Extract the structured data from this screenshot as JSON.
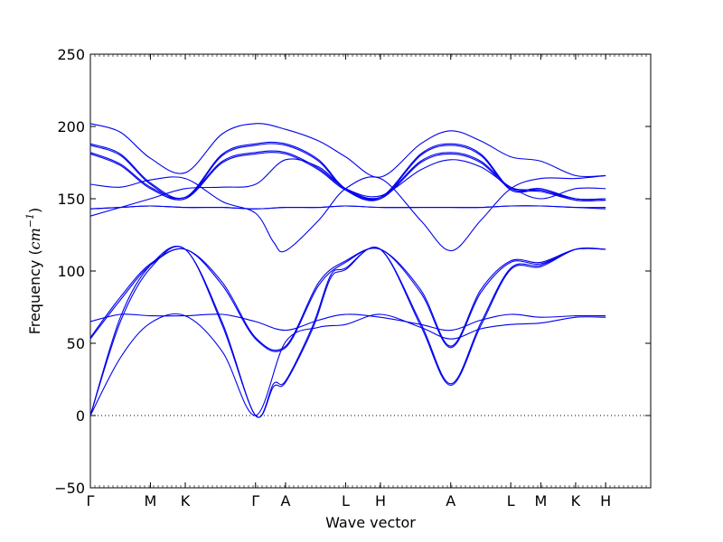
{
  "chart_data": {
    "type": "line",
    "title": "",
    "xlabel": "Wave vector",
    "ylabel": {
      "prefix": "Frequency (",
      "unit_base": "cm",
      "unit_exp": "−1",
      "suffix": ")"
    },
    "ylim": [
      -50,
      250
    ],
    "yticks": [
      -50,
      0,
      50,
      100,
      150,
      200,
      250
    ],
    "xlim": [
      0,
      9.33
    ],
    "high_symmetry_points": [
      {
        "label": "Γ",
        "x": 0.0
      },
      {
        "label": "M",
        "x": 1.0
      },
      {
        "label": "K",
        "x": 1.58
      },
      {
        "label": "Γ",
        "x": 2.75
      },
      {
        "label": "A",
        "x": 3.25
      },
      {
        "label": "L",
        "x": 4.25
      },
      {
        "label": "H",
        "x": 4.83
      },
      {
        "label": "A",
        "x": 6.0
      },
      {
        "label": "L",
        "x": 7.0
      },
      {
        "label": "M",
        "x": 7.5
      },
      {
        "label": "K",
        "x": 8.08
      },
      {
        "label": "H",
        "x": 8.58
      }
    ],
    "zero_line": {
      "y": 0,
      "style": "dotted"
    },
    "line_color": "#0000ee",
    "series": [
      {
        "values": [
          [
            0,
            0
          ],
          [
            0.5,
            40
          ],
          [
            1.0,
            64
          ],
          [
            1.58,
            69
          ],
          [
            2.2,
            44
          ],
          [
            2.75,
            0
          ],
          [
            3.25,
            51
          ],
          [
            3.8,
            61
          ],
          [
            4.25,
            63
          ],
          [
            4.83,
            70
          ],
          [
            5.5,
            61
          ],
          [
            6.0,
            53
          ],
          [
            6.5,
            60
          ],
          [
            7.0,
            63
          ],
          [
            7.5,
            64
          ],
          [
            8.08,
            68
          ],
          [
            8.58,
            68
          ]
        ]
      },
      {
        "values": [
          [
            0,
            0
          ],
          [
            0.5,
            65
          ],
          [
            1.0,
            102
          ],
          [
            1.58,
            115
          ],
          [
            2.2,
            62
          ],
          [
            2.75,
            0
          ],
          [
            3.05,
            20
          ],
          [
            3.25,
            23
          ],
          [
            3.7,
            60
          ],
          [
            4.0,
            95
          ],
          [
            4.25,
            101
          ],
          [
            4.83,
            115
          ],
          [
            5.5,
            62
          ],
          [
            6.0,
            21
          ],
          [
            6.5,
            62
          ],
          [
            7.0,
            101
          ],
          [
            7.5,
            103
          ],
          [
            8.08,
            115
          ],
          [
            8.58,
            115
          ]
        ]
      },
      {
        "values": [
          [
            0,
            0
          ],
          [
            0.5,
            68
          ],
          [
            1.0,
            104
          ],
          [
            1.58,
            115
          ],
          [
            2.2,
            64
          ],
          [
            2.75,
            0
          ],
          [
            3.05,
            22
          ],
          [
            3.25,
            24
          ],
          [
            3.7,
            62
          ],
          [
            4.0,
            97
          ],
          [
            4.25,
            102
          ],
          [
            4.83,
            115
          ],
          [
            5.5,
            64
          ],
          [
            6.0,
            22
          ],
          [
            6.5,
            64
          ],
          [
            7.0,
            102
          ],
          [
            7.5,
            104
          ],
          [
            8.08,
            115
          ],
          [
            8.58,
            115
          ]
        ]
      },
      {
        "values": [
          [
            0,
            53
          ],
          [
            0.5,
            80
          ],
          [
            1.0,
            104
          ],
          [
            1.58,
            115
          ],
          [
            2.2,
            90
          ],
          [
            2.75,
            53
          ],
          [
            3.25,
            47
          ],
          [
            3.8,
            90
          ],
          [
            4.25,
            106
          ],
          [
            4.83,
            115
          ],
          [
            5.5,
            85
          ],
          [
            6.0,
            47
          ],
          [
            6.5,
            85
          ],
          [
            7.0,
            106
          ],
          [
            7.5,
            105
          ],
          [
            8.08,
            115
          ],
          [
            8.58,
            115
          ]
        ]
      },
      {
        "values": [
          [
            0,
            54
          ],
          [
            0.5,
            82
          ],
          [
            1.0,
            105
          ],
          [
            1.58,
            115
          ],
          [
            2.2,
            92
          ],
          [
            2.75,
            54
          ],
          [
            3.25,
            48
          ],
          [
            3.8,
            92
          ],
          [
            4.25,
            107
          ],
          [
            4.83,
            115
          ],
          [
            5.5,
            87
          ],
          [
            6.0,
            48
          ],
          [
            6.5,
            87
          ],
          [
            7.0,
            107
          ],
          [
            7.5,
            106
          ],
          [
            8.08,
            115
          ],
          [
            8.58,
            115
          ]
        ]
      },
      {
        "values": [
          [
            0,
            65
          ],
          [
            0.5,
            70
          ],
          [
            1.0,
            69
          ],
          [
            1.58,
            69
          ],
          [
            2.2,
            70
          ],
          [
            2.75,
            65
          ],
          [
            3.25,
            59
          ],
          [
            3.8,
            66
          ],
          [
            4.25,
            70
          ],
          [
            4.83,
            68
          ],
          [
            5.5,
            63
          ],
          [
            6.0,
            59
          ],
          [
            6.5,
            66
          ],
          [
            7.0,
            70
          ],
          [
            7.5,
            68
          ],
          [
            8.08,
            69
          ],
          [
            8.58,
            69
          ]
        ]
      },
      {
        "values": [
          [
            0,
            143
          ],
          [
            0.5,
            144
          ],
          [
            1.0,
            145
          ],
          [
            1.58,
            144
          ],
          [
            2.2,
            144
          ],
          [
            2.75,
            143
          ],
          [
            3.25,
            144
          ],
          [
            3.8,
            144
          ],
          [
            4.25,
            145
          ],
          [
            4.83,
            144
          ],
          [
            5.5,
            144
          ],
          [
            6.0,
            144
          ],
          [
            6.5,
            144
          ],
          [
            7.0,
            145
          ],
          [
            7.5,
            145
          ],
          [
            8.08,
            144
          ],
          [
            8.58,
            143
          ]
        ]
      },
      {
        "values": [
          [
            0,
            143
          ],
          [
            0.5,
            144
          ],
          [
            1.0,
            145
          ],
          [
            1.58,
            144
          ],
          [
            2.2,
            144
          ],
          [
            2.75,
            143
          ],
          [
            3.25,
            144
          ],
          [
            3.8,
            144
          ],
          [
            4.25,
            145
          ],
          [
            4.83,
            144
          ],
          [
            5.5,
            144
          ],
          [
            6.0,
            144
          ],
          [
            6.5,
            144
          ],
          [
            7.0,
            145
          ],
          [
            7.5,
            145
          ],
          [
            8.08,
            144
          ],
          [
            8.58,
            144
          ]
        ]
      },
      {
        "values": [
          [
            0,
            138
          ],
          [
            0.5,
            144
          ],
          [
            1.0,
            150
          ],
          [
            1.58,
            157
          ],
          [
            2.2,
            158
          ],
          [
            2.75,
            160
          ],
          [
            3.25,
            177
          ],
          [
            3.8,
            172
          ],
          [
            4.25,
            157
          ],
          [
            4.83,
            152
          ],
          [
            5.5,
            170
          ],
          [
            6.0,
            177
          ],
          [
            6.5,
            172
          ],
          [
            7.0,
            158
          ],
          [
            7.5,
            150
          ],
          [
            8.08,
            157
          ],
          [
            8.58,
            157
          ]
        ]
      },
      {
        "values": [
          [
            0,
            160
          ],
          [
            0.5,
            158
          ],
          [
            1.0,
            163
          ],
          [
            1.58,
            164
          ],
          [
            2.2,
            148
          ],
          [
            2.75,
            140
          ],
          [
            3.05,
            120
          ],
          [
            3.25,
            114
          ],
          [
            3.8,
            135
          ],
          [
            4.25,
            157
          ],
          [
            4.83,
            164
          ],
          [
            5.5,
            135
          ],
          [
            6.0,
            114
          ],
          [
            6.5,
            135
          ],
          [
            7.0,
            157
          ],
          [
            7.5,
            164
          ],
          [
            8.08,
            164
          ],
          [
            8.58,
            166
          ]
        ]
      },
      {
        "values": [
          [
            0,
            181
          ],
          [
            0.5,
            173
          ],
          [
            1.0,
            157
          ],
          [
            1.58,
            150
          ],
          [
            2.2,
            175
          ],
          [
            2.75,
            181
          ],
          [
            3.25,
            181
          ],
          [
            3.8,
            170
          ],
          [
            4.25,
            156
          ],
          [
            4.83,
            150
          ],
          [
            5.5,
            175
          ],
          [
            6.0,
            181
          ],
          [
            6.5,
            175
          ],
          [
            7.0,
            157
          ],
          [
            7.5,
            155
          ],
          [
            8.08,
            149
          ],
          [
            8.58,
            149
          ]
        ]
      },
      {
        "values": [
          [
            0,
            182
          ],
          [
            0.5,
            174
          ],
          [
            1.0,
            158
          ],
          [
            1.58,
            151
          ],
          [
            2.2,
            176
          ],
          [
            2.75,
            182
          ],
          [
            3.25,
            182
          ],
          [
            3.8,
            171
          ],
          [
            4.25,
            157
          ],
          [
            4.83,
            151
          ],
          [
            5.5,
            176
          ],
          [
            6.0,
            182
          ],
          [
            6.5,
            176
          ],
          [
            7.0,
            158
          ],
          [
            7.5,
            156
          ],
          [
            8.08,
            150
          ],
          [
            8.58,
            150
          ]
        ]
      },
      {
        "values": [
          [
            0,
            187
          ],
          [
            0.5,
            180
          ],
          [
            1.0,
            160
          ],
          [
            1.58,
            150
          ],
          [
            2.2,
            180
          ],
          [
            2.75,
            187
          ],
          [
            3.25,
            187
          ],
          [
            3.8,
            176
          ],
          [
            4.25,
            156
          ],
          [
            4.83,
            150
          ],
          [
            5.5,
            180
          ],
          [
            6.0,
            187
          ],
          [
            6.5,
            180
          ],
          [
            7.0,
            156
          ],
          [
            7.5,
            156
          ],
          [
            8.08,
            149
          ],
          [
            8.58,
            149
          ]
        ]
      },
      {
        "values": [
          [
            0,
            188
          ],
          [
            0.5,
            181
          ],
          [
            1.0,
            161
          ],
          [
            1.58,
            151
          ],
          [
            2.2,
            181
          ],
          [
            2.75,
            188
          ],
          [
            3.25,
            188
          ],
          [
            3.8,
            177
          ],
          [
            4.25,
            157
          ],
          [
            4.83,
            151
          ],
          [
            5.5,
            181
          ],
          [
            6.0,
            188
          ],
          [
            6.5,
            181
          ],
          [
            7.0,
            157
          ],
          [
            7.5,
            157
          ],
          [
            8.08,
            150
          ],
          [
            8.58,
            150
          ]
        ]
      },
      {
        "values": [
          [
            0,
            202
          ],
          [
            0.5,
            196
          ],
          [
            1.0,
            178
          ],
          [
            1.58,
            168
          ],
          [
            2.2,
            195
          ],
          [
            2.75,
            202
          ],
          [
            3.25,
            198
          ],
          [
            3.8,
            190
          ],
          [
            4.25,
            179
          ],
          [
            4.83,
            165
          ],
          [
            5.5,
            188
          ],
          [
            6.0,
            197
          ],
          [
            6.5,
            190
          ],
          [
            7.0,
            179
          ],
          [
            7.5,
            176
          ],
          [
            8.08,
            166
          ],
          [
            8.58,
            166
          ]
        ]
      }
    ]
  }
}
